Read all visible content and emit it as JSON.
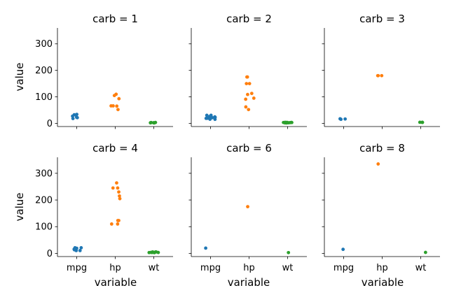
{
  "chart_data": {
    "type": "scatter",
    "kind": "strip",
    "ylabel": "value",
    "xlabel": "variable",
    "categories": [
      "mpg",
      "hp",
      "wt"
    ],
    "ylim": [
      -12,
      360
    ],
    "yticks": [
      0,
      100,
      200,
      300
    ],
    "colors": {
      "mpg": "#1f77b4",
      "hp": "#ff7f0e",
      "wt": "#2ca02c"
    },
    "grid": false,
    "panels": [
      {
        "title": "carb = 1",
        "mpg": [
          22.8,
          21.4,
          18.1,
          32.4,
          30.4,
          33.9,
          27.3
        ],
        "hp": [
          93,
          110,
          105,
          66,
          52,
          65,
          66
        ],
        "wt": [
          2.32,
          3.215,
          3.46,
          2.2,
          1.615,
          1.835,
          1.935
        ]
      },
      {
        "title": "carb = 2",
        "mpg": [
          18.7,
          24.4,
          22.8,
          30.4,
          15.5,
          15.2,
          19.2,
          26.0,
          30.4,
          21.4
        ],
        "hp": [
          175,
          62,
          95,
          52,
          150,
          150,
          175,
          91,
          113,
          109
        ],
        "wt": [
          3.44,
          3.19,
          3.15,
          1.615,
          3.52,
          3.435,
          3.845,
          2.14,
          1.513,
          2.78
        ]
      },
      {
        "title": "carb = 3",
        "mpg": [
          16.4,
          17.3,
          15.2
        ],
        "hp": [
          180,
          180,
          180
        ],
        "wt": [
          4.07,
          3.73,
          3.78
        ]
      },
      {
        "title": "carb = 4",
        "mpg": [
          21.0,
          21.0,
          14.3,
          19.2,
          17.8,
          10.4,
          10.4,
          14.7,
          13.3,
          15.8
        ],
        "hp": [
          110,
          110,
          245,
          123,
          123,
          205,
          215,
          230,
          245,
          264
        ],
        "wt": [
          2.62,
          2.875,
          3.57,
          3.44,
          3.44,
          5.25,
          5.424,
          5.345,
          3.84,
          3.17
        ]
      },
      {
        "title": "carb = 6",
        "mpg": [
          19.7
        ],
        "hp": [
          175
        ],
        "wt": [
          2.77
        ]
      },
      {
        "title": "carb = 8",
        "mpg": [
          15.0
        ],
        "hp": [
          335
        ],
        "wt": [
          3.57
        ]
      }
    ]
  }
}
